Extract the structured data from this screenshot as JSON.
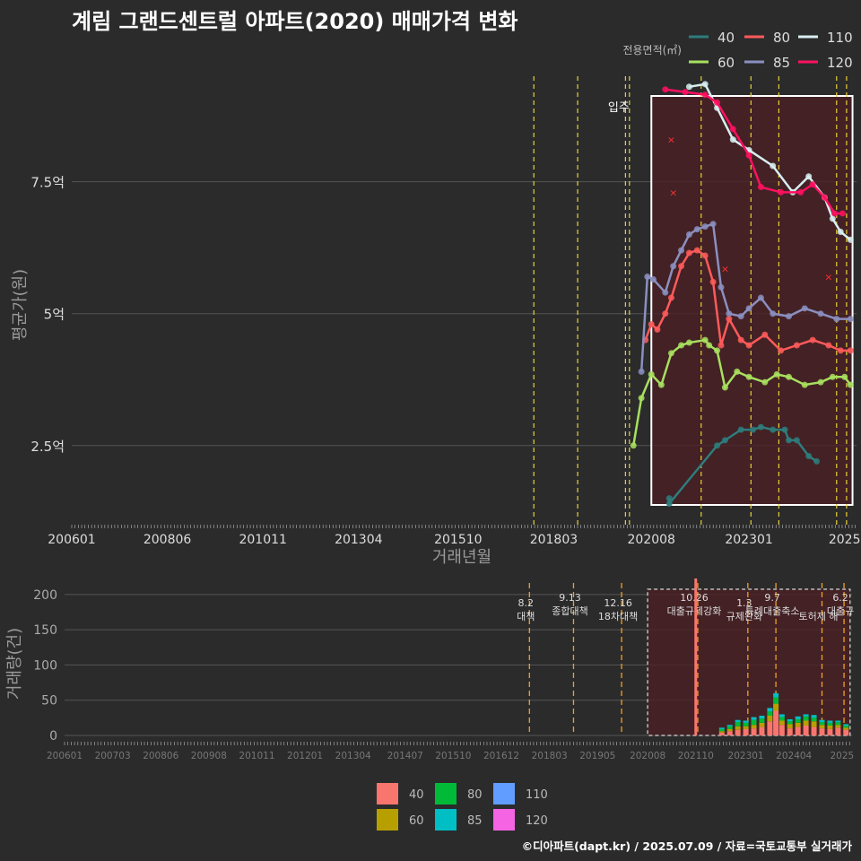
{
  "title": "계림 그랜드센트럴 아파트(2020) 매매가격 변화",
  "footer": "©디아파트(dapt.kr) / 2025.07.09 / 자료=국토교통부 실거래가",
  "legend_title": "전용면적(㎡)",
  "colors": {
    "40": "#2e7d7d",
    "60": "#a8e05f",
    "80": "#ff5a5a",
    "85": "#8b8fc0",
    "110": "#d8eef0",
    "120": "#ff1060"
  },
  "bar_colors": {
    "40": "#f8766d",
    "60": "#b79f00",
    "80": "#00ba38",
    "85": "#00bfc4",
    "110": "#619cff",
    "120": "#f564e3"
  },
  "chart_data": [
    {
      "type": "line",
      "title": "계림 그랜드센트럴 아파트(2020) 매매가격 변화",
      "xlabel": "거래년월",
      "ylabel": "평균가(원)",
      "ylim": [
        1.0,
        9.5
      ],
      "xlim": [
        2006.0,
        2025.7
      ],
      "xticks": [
        {
          "v": 2006.0,
          "label": "200601"
        },
        {
          "v": 2008.4,
          "label": "200806"
        },
        {
          "v": 2010.8,
          "label": "201011"
        },
        {
          "v": 2013.2,
          "label": "201304"
        },
        {
          "v": 2015.7,
          "label": "201510"
        },
        {
          "v": 2018.1,
          "label": "201803"
        },
        {
          "v": 2020.55,
          "label": "202008"
        },
        {
          "v": 2023.0,
          "label": "202301"
        },
        {
          "v": 2025.4,
          "label": "2025"
        }
      ],
      "yticks": [
        {
          "v": 2.5,
          "label": "2.5억"
        },
        {
          "v": 5.0,
          "label": "5억"
        },
        {
          "v": 7.5,
          "label": "7.5억"
        }
      ],
      "annotation": "입주",
      "policy_lines": [
        2017.6,
        2018.7,
        2019.9,
        2020.0,
        2021.8,
        2023.05,
        2023.75,
        2025.2,
        2025.45
      ],
      "series": [
        {
          "name": "40",
          "x": [
            2021.0,
            2021.0,
            2022.2,
            2022.4,
            2022.8,
            2023.1,
            2023.3,
            2023.6,
            2023.9,
            2024.0,
            2024.2,
            2024.5,
            2024.7
          ],
          "values": [
            1.5,
            1.4,
            2.5,
            2.6,
            2.8,
            2.8,
            2.85,
            2.8,
            2.8,
            2.6,
            2.6,
            2.3,
            2.2
          ]
        },
        {
          "name": "60",
          "x": [
            2020.1,
            2020.3,
            2020.55,
            2020.8,
            2021.05,
            2021.3,
            2021.5,
            2021.9,
            2022.0,
            2022.2,
            2022.4,
            2022.7,
            2023.0,
            2023.4,
            2023.7,
            2024.0,
            2024.4,
            2024.8,
            2025.1,
            2025.4,
            2025.55
          ],
          "values": [
            2.5,
            3.4,
            3.85,
            3.65,
            4.25,
            4.4,
            4.45,
            4.5,
            4.4,
            4.3,
            3.6,
            3.9,
            3.8,
            3.7,
            3.85,
            3.8,
            3.65,
            3.7,
            3.8,
            3.8,
            3.65
          ]
        },
        {
          "name": "80",
          "x": [
            2020.4,
            2020.55,
            2020.7,
            2020.9,
            2021.05,
            2021.3,
            2021.5,
            2021.7,
            2021.9,
            2022.1,
            2022.3,
            2022.5,
            2022.8,
            2023.0,
            2023.4,
            2023.8,
            2024.2,
            2024.6,
            2025.0,
            2025.3,
            2025.55
          ],
          "values": [
            4.5,
            4.8,
            4.7,
            5.0,
            5.3,
            5.9,
            6.15,
            6.2,
            6.1,
            5.6,
            4.4,
            4.9,
            4.5,
            4.4,
            4.6,
            4.3,
            4.4,
            4.5,
            4.4,
            4.3,
            4.3
          ]
        },
        {
          "name": "85",
          "x": [
            2020.3,
            2020.45,
            2020.6,
            2020.9,
            2021.1,
            2021.3,
            2021.5,
            2021.7,
            2021.9,
            2022.1,
            2022.3,
            2022.5,
            2022.8,
            2023.0,
            2023.3,
            2023.6,
            2024.0,
            2024.4,
            2024.8,
            2025.2,
            2025.55
          ],
          "values": [
            3.9,
            5.7,
            5.65,
            5.4,
            5.9,
            6.2,
            6.5,
            6.6,
            6.65,
            6.7,
            5.5,
            5.0,
            4.95,
            5.1,
            5.3,
            5.0,
            4.95,
            5.1,
            5.0,
            4.9,
            4.9
          ]
        },
        {
          "name": "110",
          "x": [
            2021.5,
            2021.9,
            2022.2,
            2022.6,
            2023.0,
            2023.6,
            2024.1,
            2024.5,
            2024.9,
            2025.1,
            2025.3,
            2025.55
          ],
          "values": [
            9.3,
            9.35,
            8.9,
            8.3,
            8.1,
            7.8,
            7.3,
            7.6,
            7.2,
            6.8,
            6.55,
            6.4
          ]
        },
        {
          "name": "120",
          "x": [
            2020.9,
            2021.4,
            2021.9,
            2022.2,
            2022.6,
            2023.0,
            2023.3,
            2023.8,
            2024.3,
            2024.6,
            2024.9,
            2025.15,
            2025.35
          ],
          "values": [
            9.25,
            9.2,
            9.15,
            9.0,
            8.5,
            8.0,
            7.4,
            7.3,
            7.3,
            7.45,
            7.2,
            6.9,
            6.9
          ]
        }
      ],
      "outliers_x_marks": [
        {
          "x": 2021.05,
          "y": 8.3
        },
        {
          "x": 2021.1,
          "y": 7.3
        },
        {
          "x": 2022.4,
          "y": 5.85
        },
        {
          "x": 2025.0,
          "y": 5.7
        }
      ]
    },
    {
      "type": "bar",
      "ylabel": "거래량(건)",
      "ylim": [
        0,
        210
      ],
      "yticks": [
        0,
        50,
        100,
        150,
        200
      ],
      "xticks": [
        {
          "v": 2006.0,
          "label": "200601"
        },
        {
          "v": 2007.2,
          "label": "200703"
        },
        {
          "v": 2008.4,
          "label": "200806"
        },
        {
          "v": 2009.6,
          "label": "200908"
        },
        {
          "v": 2010.8,
          "label": "201011"
        },
        {
          "v": 2012.0,
          "label": "201201"
        },
        {
          "v": 2013.2,
          "label": "201304"
        },
        {
          "v": 2014.5,
          "label": "201407"
        },
        {
          "v": 2015.7,
          "label": "201510"
        },
        {
          "v": 2016.9,
          "label": "201612"
        },
        {
          "v": 2018.1,
          "label": "201803"
        },
        {
          "v": 2019.3,
          "label": "201905"
        },
        {
          "v": 2020.55,
          "label": "202008"
        },
        {
          "v": 2021.75,
          "label": "202110"
        },
        {
          "v": 2023.0,
          "label": "202301"
        },
        {
          "v": 2024.2,
          "label": "202404"
        },
        {
          "v": 2025.4,
          "label": "2025"
        }
      ],
      "big_bar": {
        "x": 2021.75,
        "value": 220,
        "series": "40"
      },
      "bars": [
        {
          "x": 2022.4,
          "values": [
            4,
            2,
            3,
            2
          ]
        },
        {
          "x": 2022.6,
          "values": [
            6,
            3,
            4,
            2
          ]
        },
        {
          "x": 2022.8,
          "values": [
            8,
            5,
            6,
            3
          ]
        },
        {
          "x": 2023.0,
          "values": [
            9,
            4,
            5,
            3
          ]
        },
        {
          "x": 2023.2,
          "values": [
            10,
            5,
            7,
            4
          ]
        },
        {
          "x": 2023.4,
          "values": [
            12,
            6,
            6,
            4
          ]
        },
        {
          "x": 2023.6,
          "values": [
            20,
            8,
            6,
            5
          ]
        },
        {
          "x": 2023.75,
          "values": [
            35,
            10,
            9,
            6
          ]
        },
        {
          "x": 2023.9,
          "values": [
            15,
            6,
            5,
            4
          ]
        },
        {
          "x": 2024.1,
          "values": [
            10,
            6,
            4,
            3
          ]
        },
        {
          "x": 2024.3,
          "values": [
            12,
            6,
            5,
            4
          ]
        },
        {
          "x": 2024.5,
          "values": [
            14,
            7,
            6,
            3
          ]
        },
        {
          "x": 2024.7,
          "values": [
            12,
            8,
            5,
            4
          ]
        },
        {
          "x": 2024.9,
          "values": [
            10,
            5,
            4,
            3
          ]
        },
        {
          "x": 2025.1,
          "values": [
            9,
            5,
            4,
            3
          ]
        },
        {
          "x": 2025.3,
          "values": [
            11,
            4,
            4,
            2
          ]
        },
        {
          "x": 2025.5,
          "values": [
            8,
            3,
            3,
            2
          ]
        }
      ],
      "policies": [
        {
          "x": 2017.6,
          "date": "8.2",
          "label": "대책"
        },
        {
          "x": 2018.7,
          "date": "9.13",
          "label": "종합대책"
        },
        {
          "x": 2019.9,
          "date": "12.16",
          "label": "18차대책"
        },
        {
          "x": 2021.8,
          "date": "10.26",
          "label": "대출규제강화"
        },
        {
          "x": 2023.05,
          "date": "1.3",
          "label": "규제완화"
        },
        {
          "x": 2023.75,
          "date": "9.7",
          "label": "특례대출축소"
        },
        {
          "x": 2024.9,
          "date": "",
          "label": "토허제 해"
        },
        {
          "x": 2025.45,
          "date": "6.2",
          "label": "대출규"
        }
      ],
      "legend": [
        "40",
        "60",
        "80",
        "85",
        "110",
        "120"
      ]
    }
  ]
}
